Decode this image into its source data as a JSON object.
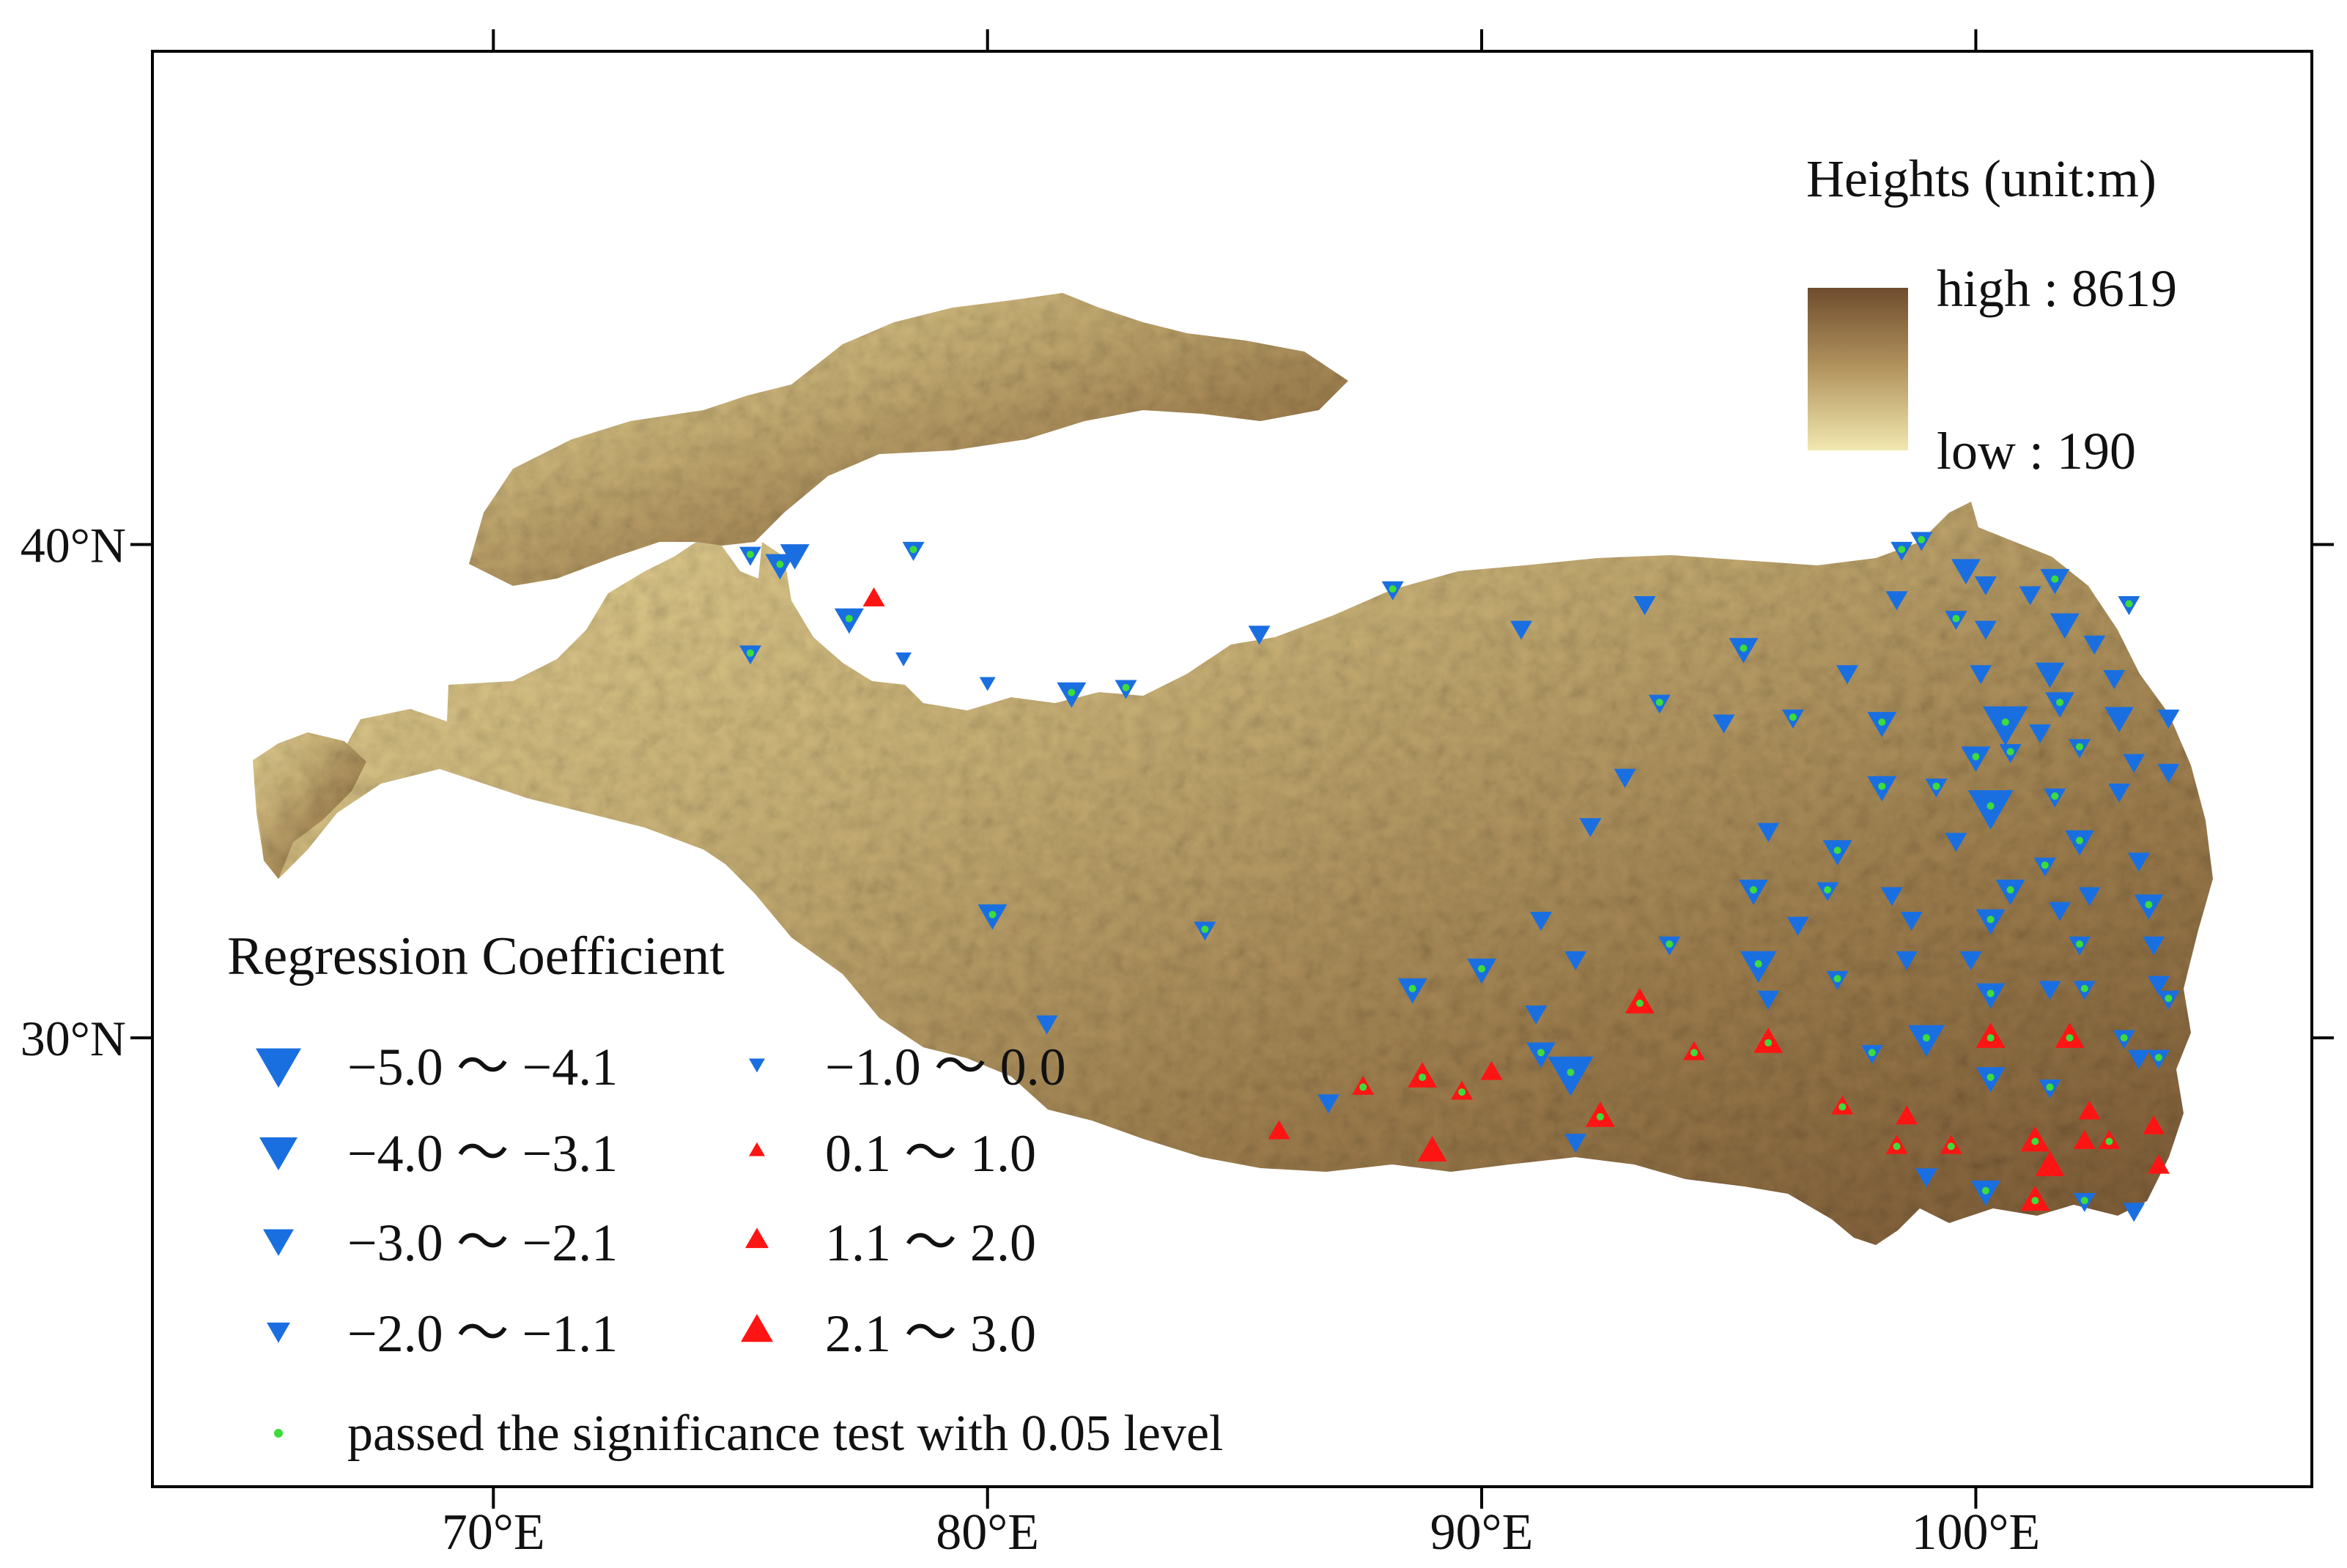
{
  "axes": {
    "x_ticks": [
      {
        "lon": 70,
        "label": "70°E"
      },
      {
        "lon": 80,
        "label": "80°E"
      },
      {
        "lon": 90,
        "label": "90°E"
      },
      {
        "lon": 100,
        "label": "100°E"
      }
    ],
    "y_ticks": [
      {
        "lat": 40,
        "label": "40°N"
      },
      {
        "lat": 30,
        "label": "30°N"
      }
    ],
    "lon_range": [
      63.1,
      106.8
    ],
    "lat_range": [
      20.9,
      50.0
    ]
  },
  "elevation_legend": {
    "title": "Heights (unit:m)",
    "high_label": "high : 8619",
    "low_label": "low : 190",
    "high_value": 8619,
    "low_value": 190,
    "colors": {
      "high": "#6e4c2e",
      "mid": "#b3955f",
      "low": "#f2e8b0"
    }
  },
  "coefficient_legend": {
    "title": "Regression Coefficient",
    "classes": [
      {
        "id": "neg5",
        "label": "−5.0 ～ −4.1",
        "sign": "neg",
        "size": 5
      },
      {
        "id": "neg4",
        "label": "−4.0 ～ −3.1",
        "sign": "neg",
        "size": 4
      },
      {
        "id": "neg3",
        "label": "−3.0 ～ −2.1",
        "sign": "neg",
        "size": 3
      },
      {
        "id": "neg2",
        "label": "−2.0 ～ −1.1",
        "sign": "neg",
        "size": 2
      },
      {
        "id": "neg1",
        "label": "−1.0 ～ 0.0",
        "sign": "neg",
        "size": 1
      },
      {
        "id": "pos1",
        "label": "0.1 ～ 1.0",
        "sign": "pos",
        "size": 1
      },
      {
        "id": "pos2",
        "label": "1.1 ～ 2.0",
        "sign": "pos",
        "size": 2
      },
      {
        "id": "pos3",
        "label": "2.1 ～ 3.0",
        "sign": "pos",
        "size": 3
      }
    ],
    "significance_label": "passed the significance test with 0.05 level",
    "colors": {
      "negative": "#1a6fe0",
      "positive": "#ff1414",
      "significant": "#3ddc3d"
    }
  },
  "stations": [
    {
      "lon": 75.2,
      "lat": 39.8,
      "v": -1.5,
      "sig": true
    },
    {
      "lon": 75.8,
      "lat": 39.6,
      "v": -2.5,
      "sig": true
    },
    {
      "lon": 76.1,
      "lat": 39.8,
      "v": -2.5,
      "sig": false
    },
    {
      "lon": 78.5,
      "lat": 39.9,
      "v": -1.5,
      "sig": true
    },
    {
      "lon": 77.7,
      "lat": 38.9,
      "v": 1.5,
      "sig": false
    },
    {
      "lon": 77.2,
      "lat": 38.5,
      "v": -2.5,
      "sig": true
    },
    {
      "lon": 75.2,
      "lat": 37.8,
      "v": -1.5,
      "sig": true
    },
    {
      "lon": 78.3,
      "lat": 37.7,
      "v": -0.5,
      "sig": false
    },
    {
      "lon": 80.0,
      "lat": 37.2,
      "v": -0.5,
      "sig": false
    },
    {
      "lon": 81.7,
      "lat": 37.0,
      "v": -2.5,
      "sig": true
    },
    {
      "lon": 82.8,
      "lat": 37.1,
      "v": -1.5,
      "sig": true
    },
    {
      "lon": 85.5,
      "lat": 38.2,
      "v": -1.5,
      "sig": false
    },
    {
      "lon": 88.2,
      "lat": 39.1,
      "v": -1.5,
      "sig": true
    },
    {
      "lon": 90.8,
      "lat": 38.3,
      "v": -1.5,
      "sig": false
    },
    {
      "lon": 93.3,
      "lat": 38.8,
      "v": -1.5,
      "sig": false
    },
    {
      "lon": 93.6,
      "lat": 36.8,
      "v": -1.5,
      "sig": true
    },
    {
      "lon": 94.9,
      "lat": 36.4,
      "v": -1.5,
      "sig": false
    },
    {
      "lon": 95.3,
      "lat": 37.9,
      "v": -2.5,
      "sig": true
    },
    {
      "lon": 96.3,
      "lat": 36.5,
      "v": -1.5,
      "sig": true
    },
    {
      "lon": 97.4,
      "lat": 37.4,
      "v": -1.5,
      "sig": false
    },
    {
      "lon": 98.1,
      "lat": 36.4,
      "v": -2.5,
      "sig": true
    },
    {
      "lon": 98.5,
      "lat": 39.9,
      "v": -1.5,
      "sig": true
    },
    {
      "lon": 98.9,
      "lat": 40.1,
      "v": -1.5,
      "sig": true
    },
    {
      "lon": 98.4,
      "lat": 38.9,
      "v": -1.5,
      "sig": false
    },
    {
      "lon": 99.6,
      "lat": 38.5,
      "v": -1.5,
      "sig": true
    },
    {
      "lon": 99.8,
      "lat": 39.5,
      "v": -2.5,
      "sig": false
    },
    {
      "lon": 100.2,
      "lat": 39.2,
      "v": -1.5,
      "sig": false
    },
    {
      "lon": 100.2,
      "lat": 38.3,
      "v": -1.5,
      "sig": false
    },
    {
      "lon": 101.1,
      "lat": 39.0,
      "v": -1.5,
      "sig": false
    },
    {
      "lon": 101.6,
      "lat": 39.3,
      "v": -2.5,
      "sig": true
    },
    {
      "lon": 101.8,
      "lat": 38.4,
      "v": -2.5,
      "sig": false
    },
    {
      "lon": 102.4,
      "lat": 38.0,
      "v": -1.5,
      "sig": false
    },
    {
      "lon": 103.1,
      "lat": 38.8,
      "v": -1.5,
      "sig": true
    },
    {
      "lon": 100.1,
      "lat": 37.4,
      "v": -1.5,
      "sig": false
    },
    {
      "lon": 101.5,
      "lat": 37.4,
      "v": -2.5,
      "sig": false
    },
    {
      "lon": 102.8,
      "lat": 37.3,
      "v": -1.5,
      "sig": false
    },
    {
      "lon": 101.7,
      "lat": 36.8,
      "v": -2.5,
      "sig": true
    },
    {
      "lon": 102.9,
      "lat": 36.5,
      "v": -2.5,
      "sig": false
    },
    {
      "lon": 103.9,
      "lat": 36.5,
      "v": -1.5,
      "sig": false
    },
    {
      "lon": 100.6,
      "lat": 36.4,
      "v": -4.5,
      "sig": true
    },
    {
      "lon": 101.3,
      "lat": 36.2,
      "v": -1.5,
      "sig": false
    },
    {
      "lon": 100.0,
      "lat": 35.7,
      "v": -2.5,
      "sig": true
    },
    {
      "lon": 100.7,
      "lat": 35.8,
      "v": -1.5,
      "sig": true
    },
    {
      "lon": 102.1,
      "lat": 35.9,
      "v": -1.5,
      "sig": true
    },
    {
      "lon": 103.2,
      "lat": 35.6,
      "v": -1.5,
      "sig": false
    },
    {
      "lon": 103.9,
      "lat": 35.4,
      "v": -1.5,
      "sig": false
    },
    {
      "lon": 98.1,
      "lat": 35.1,
      "v": -2.5,
      "sig": true
    },
    {
      "lon": 99.2,
      "lat": 35.1,
      "v": -1.5,
      "sig": true
    },
    {
      "lon": 100.3,
      "lat": 34.7,
      "v": -5.0,
      "sig": true
    },
    {
      "lon": 101.6,
      "lat": 34.9,
      "v": -1.5,
      "sig": true
    },
    {
      "lon": 102.9,
      "lat": 35.0,
      "v": -1.5,
      "sig": false
    },
    {
      "lon": 92.9,
      "lat": 35.3,
      "v": -1.5,
      "sig": false
    },
    {
      "lon": 92.2,
      "lat": 34.3,
      "v": -1.5,
      "sig": false
    },
    {
      "lon": 95.8,
      "lat": 34.2,
      "v": -1.5,
      "sig": false
    },
    {
      "lon": 97.2,
      "lat": 33.8,
      "v": -2.5,
      "sig": true
    },
    {
      "lon": 99.6,
      "lat": 34.0,
      "v": -1.5,
      "sig": false
    },
    {
      "lon": 102.1,
      "lat": 34.0,
      "v": -2.5,
      "sig": true
    },
    {
      "lon": 101.4,
      "lat": 33.5,
      "v": -1.5,
      "sig": true
    },
    {
      "lon": 103.3,
      "lat": 33.6,
      "v": -1.5,
      "sig": false
    },
    {
      "lon": 95.5,
      "lat": 33.0,
      "v": -2.5,
      "sig": true
    },
    {
      "lon": 97.0,
      "lat": 33.0,
      "v": -1.5,
      "sig": true
    },
    {
      "lon": 98.3,
      "lat": 32.9,
      "v": -1.5,
      "sig": false
    },
    {
      "lon": 100.7,
      "lat": 33.0,
      "v": -2.5,
      "sig": true
    },
    {
      "lon": 102.3,
      "lat": 32.9,
      "v": -1.5,
      "sig": false
    },
    {
      "lon": 103.5,
      "lat": 32.7,
      "v": -2.5,
      "sig": true
    },
    {
      "lon": 96.4,
      "lat": 32.3,
      "v": -1.5,
      "sig": false
    },
    {
      "lon": 98.7,
      "lat": 32.4,
      "v": -1.5,
      "sig": false
    },
    {
      "lon": 100.3,
      "lat": 32.4,
      "v": -2.5,
      "sig": true
    },
    {
      "lon": 101.7,
      "lat": 32.6,
      "v": -1.5,
      "sig": false
    },
    {
      "lon": 102.1,
      "lat": 31.9,
      "v": -1.5,
      "sig": true
    },
    {
      "lon": 103.6,
      "lat": 31.9,
      "v": -1.5,
      "sig": false
    },
    {
      "lon": 80.1,
      "lat": 32.5,
      "v": -2.5,
      "sig": true
    },
    {
      "lon": 84.4,
      "lat": 32.2,
      "v": -1.5,
      "sig": true
    },
    {
      "lon": 91.2,
      "lat": 32.4,
      "v": -1.5,
      "sig": false
    },
    {
      "lon": 91.9,
      "lat": 31.6,
      "v": -1.5,
      "sig": false
    },
    {
      "lon": 93.8,
      "lat": 31.9,
      "v": -1.5,
      "sig": true
    },
    {
      "lon": 95.6,
      "lat": 31.5,
      "v": -3.5,
      "sig": true
    },
    {
      "lon": 97.2,
      "lat": 31.2,
      "v": -1.5,
      "sig": true
    },
    {
      "lon": 98.6,
      "lat": 31.6,
      "v": -1.5,
      "sig": false
    },
    {
      "lon": 99.9,
      "lat": 31.6,
      "v": -1.5,
      "sig": false
    },
    {
      "lon": 100.3,
      "lat": 30.9,
      "v": -2.5,
      "sig": true
    },
    {
      "lon": 101.5,
      "lat": 31.0,
      "v": -1.5,
      "sig": false
    },
    {
      "lon": 102.2,
      "lat": 31.0,
      "v": -1.5,
      "sig": true
    },
    {
      "lon": 103.7,
      "lat": 31.1,
      "v": -1.5,
      "sig": false
    },
    {
      "lon": 103.9,
      "lat": 30.8,
      "v": -1.5,
      "sig": true
    },
    {
      "lon": 88.6,
      "lat": 31.0,
      "v": -2.5,
      "sig": true
    },
    {
      "lon": 90.0,
      "lat": 31.4,
      "v": -2.5,
      "sig": true
    },
    {
      "lon": 81.2,
      "lat": 30.3,
      "v": -1.5,
      "sig": false
    },
    {
      "lon": 91.1,
      "lat": 30.5,
      "v": -1.5,
      "sig": false
    },
    {
      "lon": 95.8,
      "lat": 30.8,
      "v": -1.5,
      "sig": false
    },
    {
      "lon": 93.2,
      "lat": 30.7,
      "v": 3.0,
      "sig": true
    },
    {
      "lon": 91.2,
      "lat": 29.7,
      "v": -2.5,
      "sig": true
    },
    {
      "lon": 91.8,
      "lat": 29.3,
      "v": -5.0,
      "sig": true
    },
    {
      "lon": 94.3,
      "lat": 29.7,
      "v": 1.5,
      "sig": true
    },
    {
      "lon": 95.8,
      "lat": 29.9,
      "v": 2.5,
      "sig": true
    },
    {
      "lon": 97.9,
      "lat": 29.7,
      "v": -1.5,
      "sig": true
    },
    {
      "lon": 99.0,
      "lat": 30.0,
      "v": -3.5,
      "sig": true
    },
    {
      "lon": 100.3,
      "lat": 30.0,
      "v": 3.0,
      "sig": true
    },
    {
      "lon": 101.9,
      "lat": 30.0,
      "v": 3.0,
      "sig": true
    },
    {
      "lon": 103.0,
      "lat": 30.0,
      "v": -1.5,
      "sig": true
    },
    {
      "lon": 103.3,
      "lat": 29.6,
      "v": -1.5,
      "sig": false
    },
    {
      "lon": 103.7,
      "lat": 29.6,
      "v": -1.5,
      "sig": true
    },
    {
      "lon": 100.3,
      "lat": 29.2,
      "v": -2.5,
      "sig": true
    },
    {
      "lon": 101.5,
      "lat": 29.0,
      "v": -1.5,
      "sig": true
    },
    {
      "lon": 86.9,
      "lat": 28.7,
      "v": -1.5,
      "sig": false
    },
    {
      "lon": 87.6,
      "lat": 29.0,
      "v": 1.5,
      "sig": true
    },
    {
      "lon": 88.8,
      "lat": 29.2,
      "v": 3.0,
      "sig": true
    },
    {
      "lon": 89.6,
      "lat": 28.9,
      "v": 1.5,
      "sig": true
    },
    {
      "lon": 90.2,
      "lat": 29.3,
      "v": 1.5,
      "sig": false
    },
    {
      "lon": 92.4,
      "lat": 28.4,
      "v": 3.0,
      "sig": true
    },
    {
      "lon": 91.9,
      "lat": 27.9,
      "v": -1.5,
      "sig": false
    },
    {
      "lon": 85.9,
      "lat": 28.1,
      "v": 1.5,
      "sig": false
    },
    {
      "lon": 89.0,
      "lat": 27.7,
      "v": 2.5,
      "sig": false
    },
    {
      "lon": 97.3,
      "lat": 28.6,
      "v": 1.5,
      "sig": true
    },
    {
      "lon": 98.6,
      "lat": 28.4,
      "v": 1.5,
      "sig": false
    },
    {
      "lon": 98.4,
      "lat": 27.8,
      "v": 1.5,
      "sig": true
    },
    {
      "lon": 99.5,
      "lat": 27.8,
      "v": 1.5,
      "sig": true
    },
    {
      "lon": 101.2,
      "lat": 27.9,
      "v": 2.5,
      "sig": true
    },
    {
      "lon": 101.5,
      "lat": 27.4,
      "v": 3.0,
      "sig": false
    },
    {
      "lon": 102.2,
      "lat": 27.9,
      "v": 1.5,
      "sig": false
    },
    {
      "lon": 102.3,
      "lat": 28.5,
      "v": 1.5,
      "sig": false
    },
    {
      "lon": 102.7,
      "lat": 27.9,
      "v": 1.5,
      "sig": true
    },
    {
      "lon": 103.6,
      "lat": 28.2,
      "v": 1.5,
      "sig": false
    },
    {
      "lon": 103.7,
      "lat": 27.4,
      "v": 1.5,
      "sig": false
    },
    {
      "lon": 99.0,
      "lat": 27.2,
      "v": -1.5,
      "sig": false
    },
    {
      "lon": 100.2,
      "lat": 26.9,
      "v": -2.5,
      "sig": true
    },
    {
      "lon": 101.2,
      "lat": 26.7,
      "v": 2.5,
      "sig": true
    },
    {
      "lon": 102.2,
      "lat": 26.7,
      "v": -1.5,
      "sig": true
    },
    {
      "lon": 103.2,
      "lat": 26.5,
      "v": -1.5,
      "sig": false
    }
  ]
}
